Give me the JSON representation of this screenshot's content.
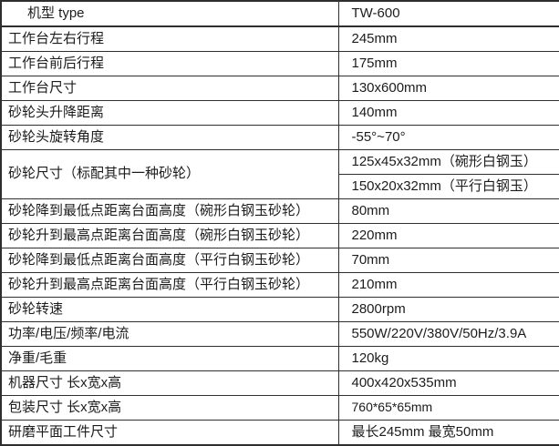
{
  "colors": {
    "border": "#2e2e2e",
    "text": "#1c1c1c",
    "background": "#ffffff"
  },
  "table": {
    "header": {
      "label": "机型 type",
      "value": "TW-600"
    },
    "rows": [
      {
        "label": "工作台左右行程",
        "value": "245mm"
      },
      {
        "label": "工作台前后行程",
        "value": "175mm"
      },
      {
        "label": "工作台尺寸",
        "value": "130x600mm"
      },
      {
        "label": "砂轮头升降距离",
        "value": "140mm"
      },
      {
        "label": "砂轮头旋转角度",
        "value": "-55°~70°"
      },
      {
        "label": "砂轮尺寸（标配其中一种砂轮）",
        "values": [
          "125x45x32mm（碗形白钢玉）",
          "150x20x32mm（平行白钢玉）"
        ]
      },
      {
        "label": "砂轮降到最低点距离台面高度（碗形白钢玉砂轮）",
        "value": "80mm"
      },
      {
        "label": "砂轮升到最高点距离台面高度（碗形白钢玉砂轮）",
        "value": "220mm"
      },
      {
        "label": "砂轮降到最低点距离台面高度（平行白钢玉砂轮）",
        "value": "70mm"
      },
      {
        "label": "砂轮升到最高点距离台面高度（平行白钢玉砂轮）",
        "value": "210mm"
      },
      {
        "label": "砂轮转速",
        "value": "2800rpm"
      },
      {
        "label": "功率/电压/频率/电流",
        "value": "550W/220V/380V/50Hz/3.9A"
      },
      {
        "label": "净重/毛重",
        "value": "120kg"
      },
      {
        "label": "机器尺寸 长x宽x高",
        "value": "400x420x535mm"
      },
      {
        "label": "包装尺寸 长x宽x高",
        "value": "760*65*65mm"
      },
      {
        "label": "研磨平面工件尺寸",
        "value": "最长245mm 最宽50mm"
      }
    ]
  }
}
